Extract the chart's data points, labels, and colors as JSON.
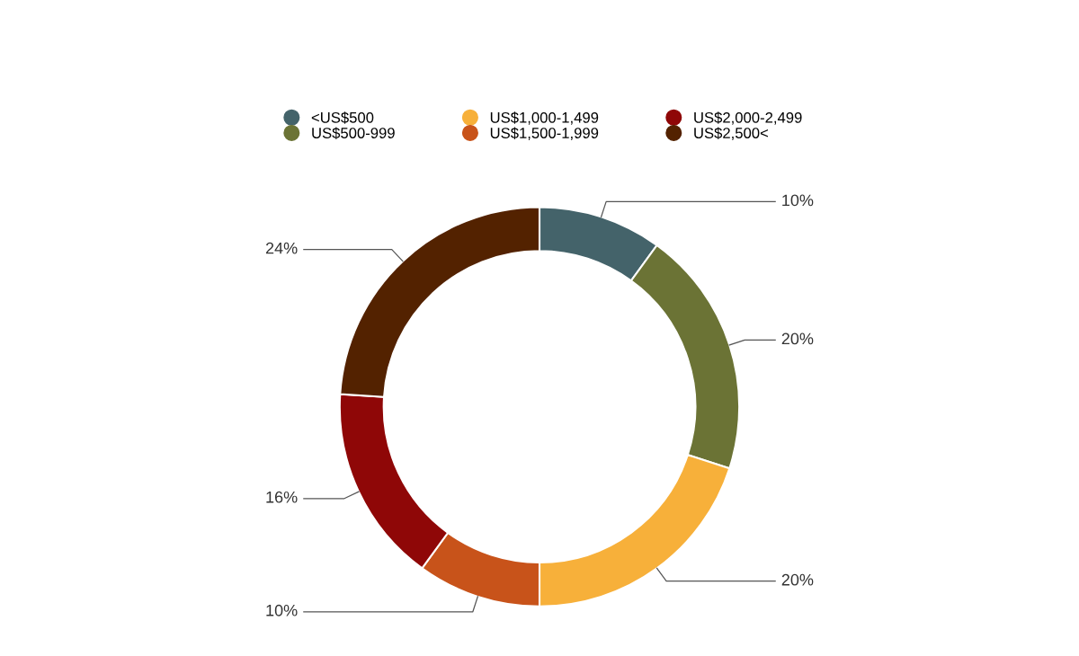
{
  "chart_data": {
    "type": "donut",
    "categories": [
      "<US$500",
      "US$500-999",
      "US$1,000-1,499",
      "US$1,500-1,999",
      "US$2,000-2,499",
      "US$2,500<"
    ],
    "values": [
      10,
      20,
      20,
      10,
      16,
      24
    ],
    "colors": [
      "#44636a",
      "#6b7335",
      "#f7b03a",
      "#c8531a",
      "#8f0707",
      "#532200"
    ],
    "value_labels": [
      "10%",
      "20%",
      "20%",
      "10%",
      "16%",
      "24%"
    ],
    "legend": "top"
  }
}
